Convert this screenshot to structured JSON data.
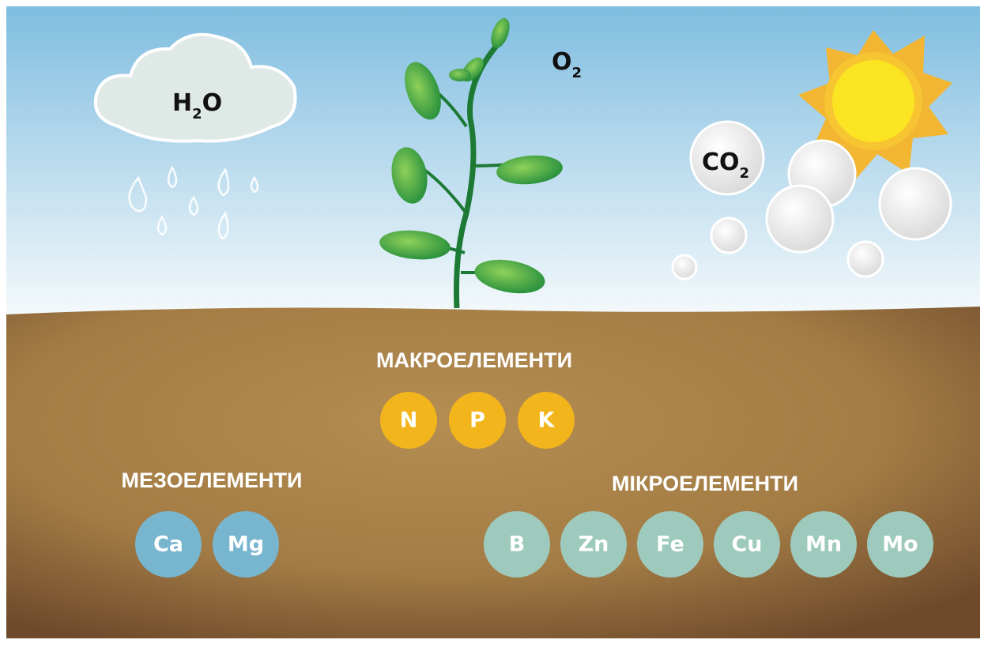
{
  "formulas": {
    "h2o": {
      "base": "H",
      "sub": "2",
      "tail": "O"
    },
    "o2": {
      "base": "O",
      "sub": "2"
    },
    "co2": {
      "base": "CO",
      "sub": "2"
    }
  },
  "groups": {
    "macro": {
      "title": "МАКРОЕЛЕМЕНТИ",
      "elements": [
        "N",
        "P",
        "K"
      ]
    },
    "meso": {
      "title": "МЕЗОЕЛЕМЕНТИ",
      "elements": [
        "Ca",
        "Mg"
      ]
    },
    "micro": {
      "title": "МІКРОЕЛЕМЕНТИ",
      "elements": [
        "B",
        "Zn",
        "Fe",
        "Cu",
        "Mn",
        "Mo"
      ]
    }
  }
}
